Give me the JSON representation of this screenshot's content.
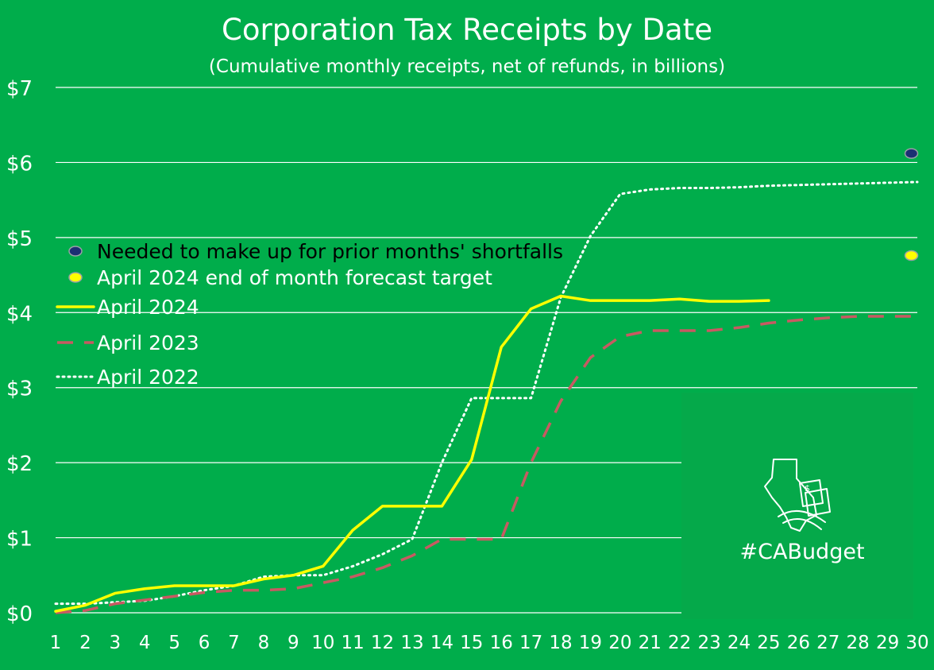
{
  "colors": {
    "background": "#00ad4b",
    "watermark_panel": "#05a94a",
    "grid": "#ffffff",
    "text": "#ffffff",
    "legend_text": "#000000",
    "april_2024": "#ffff00",
    "april_2023": "#c85a62",
    "april_2022": "#ffffff",
    "marker_needed": "#1b2f73",
    "marker_forecast": "#ffff00"
  },
  "chart_data": {
    "type": "line",
    "title": "Corporation Tax Receipts by Date",
    "subtitle": "(Cumulative monthly receipts, net of refunds, in billions)",
    "xlabel": "",
    "ylabel": "",
    "x": [
      1,
      2,
      3,
      4,
      5,
      6,
      7,
      8,
      9,
      10,
      11,
      12,
      13,
      14,
      15,
      16,
      17,
      18,
      19,
      20,
      21,
      22,
      23,
      24,
      25,
      26,
      27,
      28,
      29,
      30
    ],
    "x_tick_labels": [
      "1",
      "2",
      "3",
      "4",
      "5",
      "6",
      "7",
      "8",
      "9",
      "10",
      "11",
      "12",
      "13",
      "14",
      "15",
      "16",
      "17",
      "18",
      "19",
      "20",
      "21",
      "22",
      "23",
      "24",
      "25",
      "26",
      "27",
      "28",
      "29",
      "30"
    ],
    "xlim": [
      1,
      30
    ],
    "ylim": [
      0,
      7
    ],
    "y_ticks": [
      0,
      1,
      2,
      3,
      4,
      5,
      6,
      7
    ],
    "y_tick_labels": [
      "$0",
      "$1",
      "$2",
      "$3",
      "$4",
      "$5",
      "$6",
      "$7"
    ],
    "grid": true,
    "legend_position": "left",
    "series": [
      {
        "name": "April 2024",
        "style": "solid",
        "color": "#ffff00",
        "x": [
          1,
          2,
          3,
          4,
          5,
          6,
          7,
          8,
          9,
          10,
          11,
          12,
          13,
          14,
          15,
          16,
          17,
          18,
          19,
          20,
          21,
          22,
          23,
          24,
          25
        ],
        "values": [
          0.02,
          0.1,
          0.26,
          0.32,
          0.36,
          0.36,
          0.36,
          0.45,
          0.5,
          0.62,
          1.1,
          1.42,
          1.42,
          1.42,
          2.04,
          3.54,
          4.05,
          4.22,
          4.16,
          4.16,
          4.16,
          4.18,
          4.15,
          4.15,
          4.16
        ]
      },
      {
        "name": "April 2023",
        "style": "dashed",
        "color": "#c85a62",
        "x": [
          1,
          2,
          3,
          4,
          5,
          6,
          7,
          8,
          9,
          10,
          11,
          12,
          13,
          14,
          15,
          16,
          17,
          18,
          19,
          20,
          21,
          22,
          23,
          24,
          25,
          26,
          27,
          28,
          29,
          30
        ],
        "values": [
          0.0,
          0.03,
          0.12,
          0.17,
          0.22,
          0.27,
          0.3,
          0.3,
          0.32,
          0.4,
          0.48,
          0.6,
          0.76,
          0.98,
          0.98,
          0.98,
          2.0,
          2.82,
          3.4,
          3.68,
          3.76,
          3.76,
          3.76,
          3.8,
          3.86,
          3.9,
          3.93,
          3.95,
          3.95,
          3.95
        ]
      },
      {
        "name": "April 2022",
        "style": "dotted",
        "color": "#ffffff",
        "x": [
          1,
          2,
          3,
          4,
          5,
          6,
          7,
          8,
          9,
          10,
          11,
          12,
          13,
          14,
          15,
          16,
          17,
          18,
          19,
          20,
          21,
          22,
          23,
          24,
          25,
          26,
          27,
          28,
          29,
          30
        ],
        "values": [
          0.12,
          0.12,
          0.14,
          0.16,
          0.22,
          0.3,
          0.36,
          0.48,
          0.5,
          0.5,
          0.62,
          0.78,
          0.98,
          2.0,
          2.86,
          2.86,
          2.86,
          4.2,
          5.02,
          5.58,
          5.64,
          5.66,
          5.66,
          5.67,
          5.69,
          5.7,
          5.71,
          5.72,
          5.73,
          5.74
        ]
      }
    ],
    "markers": [
      {
        "name": "Needed to make up for prior months' shortfalls",
        "x": 29.8,
        "y": 6.12,
        "color": "#1b2f73"
      },
      {
        "name": "April 2024 end of month forecast target",
        "x": 29.8,
        "y": 4.76,
        "color": "#ffff00"
      }
    ],
    "legend": [
      {
        "label": "Needed to make up for prior months' shortfalls",
        "kind": "marker",
        "color": "#1b2f73",
        "text_color": "#000000"
      },
      {
        "label": "April 2024 end of month forecast target",
        "kind": "marker",
        "color": "#ffff00",
        "text_color": "#ffffff"
      },
      {
        "label": "April 2024",
        "kind": "solid",
        "color": "#ffff00",
        "text_color": "#ffffff"
      },
      {
        "label": "April 2023",
        "kind": "dashed",
        "color": "#c85a62",
        "text_color": "#ffffff"
      },
      {
        "label": "April 2022",
        "kind": "dotted",
        "color": "#ffffff",
        "text_color": "#ffffff"
      }
    ]
  },
  "watermark": {
    "text": "#CABudget",
    "icon": "california-map-money-icon"
  }
}
